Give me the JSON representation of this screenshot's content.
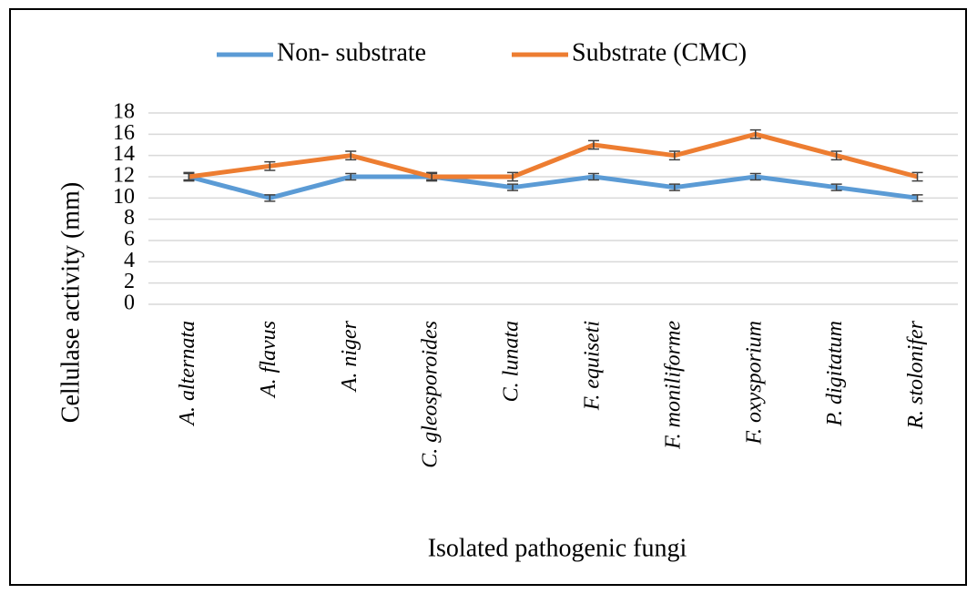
{
  "chart_data": {
    "type": "line",
    "y_label": "Cellulase activity (mm)",
    "x_label": "Isolated pathogenic fungi",
    "categories": [
      "A. alternata",
      "A. flavus",
      "A. niger",
      "C. gleosporoides",
      "C. lunata",
      "F. equiseti",
      "F. moniliforme",
      "F. oxysporium",
      "P. digitatum",
      "R. stolonifer"
    ],
    "series": [
      {
        "name": "Non- substrate",
        "color": "#5b9bd5",
        "values": [
          12,
          10,
          12,
          12,
          11,
          12,
          11,
          12,
          11,
          10
        ],
        "errors": [
          0.3,
          0.3,
          0.3,
          0.3,
          0.3,
          0.3,
          0.3,
          0.3,
          0.3,
          0.3
        ]
      },
      {
        "name": "Substrate (CMC)",
        "color": "#ed7d31",
        "values": [
          12,
          13,
          14,
          12,
          12,
          15,
          14,
          16,
          14,
          12
        ],
        "errors": [
          0.4,
          0.4,
          0.4,
          0.4,
          0.4,
          0.4,
          0.4,
          0.4,
          0.4,
          0.4
        ]
      }
    ],
    "ylim": [
      0,
      18
    ],
    "yticks": [
      0,
      2,
      4,
      6,
      8,
      10,
      12,
      14,
      16,
      18
    ],
    "grid": true,
    "legend": "top"
  }
}
